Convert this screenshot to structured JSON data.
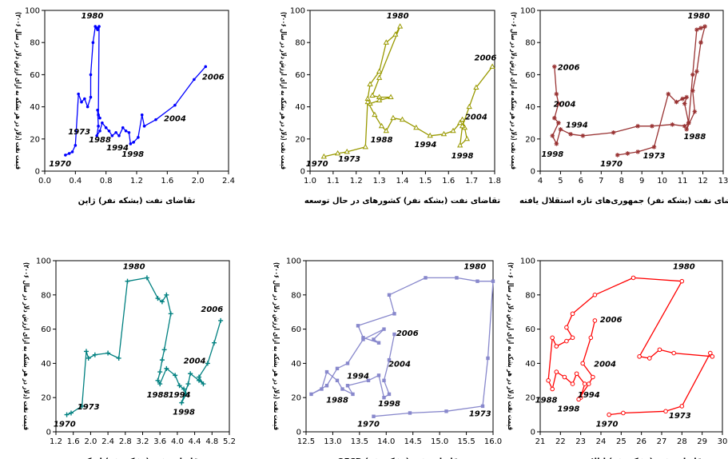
{
  "chart_data": [
    {
      "type": "line",
      "xlabel": "تقاضای نفت (بشکه نفر) ژاپن",
      "ylabel": "قیمت نفت (دلار در هر بشکه به ازای ارزش دلار در سال ۲۰۰۶)",
      "xlim": [
        0,
        2.4
      ],
      "ylim": [
        0,
        100
      ],
      "xticks": [
        "0.0",
        "0.4",
        "0.8",
        "1.2",
        "1.6",
        "2.0",
        "2.4"
      ],
      "yticks": [
        "0",
        "20",
        "40",
        "60",
        "80",
        "100"
      ],
      "color": "#0000ff",
      "marker": "dot",
      "x": [
        0.27,
        0.32,
        0.36,
        0.4,
        0.44,
        0.48,
        0.52,
        0.56,
        0.6,
        0.6,
        0.63,
        0.66,
        0.68,
        0.69,
        0.71,
        0.7,
        0.72,
        0.69,
        0.7,
        0.68,
        0.72,
        0.75,
        0.8,
        0.84,
        0.88,
        0.93,
        0.97,
        1.02,
        1.06,
        1.1,
        1.12,
        1.16,
        1.22,
        1.27,
        1.3,
        1.45,
        1.7,
        1.95,
        2.1
      ],
      "y": [
        10,
        11,
        12,
        16,
        48,
        43,
        45,
        40,
        46,
        60,
        80,
        90,
        89,
        88,
        90,
        35,
        33,
        38,
        28,
        22,
        25,
        30,
        27,
        25,
        22,
        24,
        22,
        27,
        25,
        24,
        17,
        18,
        21,
        35,
        28,
        32,
        41,
        57,
        65
      ],
      "annotations": [
        {
          "text": "1970",
          "x": 0.2,
          "y": 3
        },
        {
          "text": "1973",
          "x": 0.45,
          "y": 23
        },
        {
          "text": "1980",
          "x": 0.62,
          "y": 95
        },
        {
          "text": "1988",
          "x": 0.72,
          "y": 18
        },
        {
          "text": "1994",
          "x": 0.95,
          "y": 13
        },
        {
          "text": "1998",
          "x": 1.15,
          "y": 9
        },
        {
          "text": "2004",
          "x": 1.7,
          "y": 31
        },
        {
          "text": "2006",
          "x": 2.2,
          "y": 57
        }
      ]
    },
    {
      "type": "line",
      "xlabel": "تقاضای نفت (بشکه نفر) کشورهای در حال توسعه",
      "ylabel": "قیمت نفت (دلار در هر بشکه به ازای ارزش دلار در سال ۲۰۰۶)",
      "xlim": [
        1.0,
        1.8
      ],
      "ylim": [
        0,
        100
      ],
      "xticks": [
        "1.0",
        "1.1",
        "1.2",
        "1.3",
        "1.4",
        "1.5",
        "1.6",
        "1.7",
        "1.8"
      ],
      "yticks": [
        "0",
        "20",
        "40",
        "60",
        "80",
        "100"
      ],
      "color": "#999900",
      "marker": "triangle",
      "x": [
        1.06,
        1.12,
        1.16,
        1.24,
        1.25,
        1.26,
        1.3,
        1.33,
        1.37,
        1.39,
        1.3,
        1.27,
        1.3,
        1.35,
        1.3,
        1.26,
        1.25,
        1.28,
        1.31,
        1.33,
        1.36,
        1.4,
        1.46,
        1.52,
        1.58,
        1.62,
        1.65,
        1.66,
        1.67,
        1.68,
        1.65,
        1.66,
        1.69,
        1.72,
        1.79
      ],
      "y": [
        9,
        11,
        12,
        15,
        45,
        54,
        62,
        80,
        85,
        90,
        58,
        47,
        46,
        46,
        44,
        42,
        43,
        35,
        28,
        25,
        33,
        32,
        27,
        22,
        23,
        25,
        30,
        32,
        27,
        20,
        16,
        28,
        40,
        52,
        65
      ],
      "annotations": [
        {
          "text": "1970",
          "x": 1.03,
          "y": 3
        },
        {
          "text": "1973",
          "x": 1.17,
          "y": 6
        },
        {
          "text": "1980",
          "x": 1.38,
          "y": 95
        },
        {
          "text": "1988",
          "x": 1.31,
          "y": 18
        },
        {
          "text": "1994",
          "x": 1.5,
          "y": 15
        },
        {
          "text": "1998",
          "x": 1.66,
          "y": 8
        },
        {
          "text": "2004",
          "x": 1.72,
          "y": 32
        },
        {
          "text": "2006",
          "x": 1.76,
          "y": 69
        }
      ]
    },
    {
      "type": "line",
      "xlabel": "تقاضای نفت (بشکه نفر) جمهوری‌های تازه استقلال یافته",
      "ylabel": "قیمت نفت (دلار در هر بشکه به ازای ارزش دلار در سال ۲۰۰۶)",
      "xlim": [
        4,
        13
      ],
      "ylim": [
        0,
        100
      ],
      "xticks": [
        "4",
        "5",
        "6",
        "7",
        "8",
        "9",
        "10",
        "11",
        "12",
        "13"
      ],
      "yticks": [
        "0",
        "20",
        "40",
        "60",
        "80",
        "100"
      ],
      "color": "#993333",
      "marker": "star",
      "x": [
        7.8,
        8.3,
        8.8,
        9.6,
        10.3,
        10.7,
        11.0,
        11.2,
        11.1,
        11.3,
        11.2,
        11.6,
        11.5,
        11.7,
        11.9,
        12.1,
        11.9,
        11.7,
        11.5,
        11.3,
        11.1,
        10.5,
        9.5,
        8.8,
        7.6,
        6.1,
        5.5,
        5.0,
        4.8,
        4.6,
        4.9,
        4.7,
        4.9,
        4.8,
        4.7
      ],
      "y": [
        10,
        11,
        12,
        15,
        48,
        43,
        45,
        46,
        42,
        30,
        26,
        37,
        50,
        62,
        80,
        90,
        89,
        88,
        60,
        30,
        28,
        29,
        28,
        28,
        24,
        22,
        23,
        26,
        17,
        22,
        30,
        33,
        42,
        48,
        65
      ],
      "annotations": [
        {
          "text": "1970",
          "x": 7.5,
          "y": 3
        },
        {
          "text": "1973",
          "x": 9.6,
          "y": 8
        },
        {
          "text": "1980",
          "x": 11.8,
          "y": 95
        },
        {
          "text": "1988",
          "x": 11.6,
          "y": 20
        },
        {
          "text": "1994",
          "x": 5.8,
          "y": 27
        },
        {
          "text": "1998",
          "x": 4.6,
          "y": 9
        },
        {
          "text": "2004",
          "x": 5.2,
          "y": 40
        },
        {
          "text": "2006",
          "x": 5.4,
          "y": 63
        }
      ]
    },
    {
      "type": "line",
      "xlabel": "تقاضای نفت (بشکه نفر) اوپک",
      "ylabel": "قیمت نفت (دلار در هر بشکه به ازای ارزش دلار در سال ۲۰۰۶)",
      "xlim": [
        1.2,
        5.2
      ],
      "ylim": [
        0,
        100
      ],
      "xticks": [
        "1.2",
        "1.6",
        "2.0",
        "2.4",
        "2.8",
        "3.2",
        "3.6",
        "4.0",
        "4.4",
        "4.8",
        "5.2"
      ],
      "yticks": [
        "0",
        "20",
        "40",
        "60",
        "80",
        "100"
      ],
      "color": "#008080",
      "marker": "plus",
      "x": [
        1.45,
        1.55,
        1.8,
        1.9,
        1.95,
        2.1,
        2.4,
        2.65,
        2.85,
        3.3,
        3.55,
        3.65,
        3.75,
        3.85,
        3.7,
        3.65,
        3.6,
        3.55,
        3.6,
        3.75,
        3.95,
        4.05,
        4.15,
        4.2,
        4.1,
        4.25,
        4.3,
        4.5,
        4.6,
        4.5,
        4.7,
        4.85,
        5.0
      ],
      "y": [
        10,
        11,
        15,
        47,
        43,
        45,
        46,
        43,
        88,
        90,
        78,
        76,
        80,
        69,
        48,
        42,
        35,
        30,
        28,
        37,
        33,
        27,
        25,
        22,
        17,
        28,
        34,
        30,
        28,
        32,
        40,
        52,
        65
      ],
      "annotations": [
        {
          "text": "1970",
          "x": 1.4,
          "y": 3
        },
        {
          "text": "1973",
          "x": 1.95,
          "y": 13
        },
        {
          "text": "1980",
          "x": 3.0,
          "y": 95
        },
        {
          "text": "1988",
          "x": 3.55,
          "y": 20
        },
        {
          "text": "1994",
          "x": 4.05,
          "y": 20
        },
        {
          "text": "1998",
          "x": 4.15,
          "y": 10
        },
        {
          "text": "2004",
          "x": 4.4,
          "y": 40
        },
        {
          "text": "2006",
          "x": 4.8,
          "y": 70
        }
      ]
    },
    {
      "type": "line",
      "xlabel": "تقاضای نفت (بشکه نفر) OECD",
      "ylabel": "قیمت نفت (دلار در هر بشکه به ازای ارزش دلار در سال ۲۰۰۶)",
      "xlim": [
        12.5,
        16.1
      ],
      "ylim": [
        0,
        100
      ],
      "xticks": [
        "12.5",
        "13.0",
        "13.5",
        "14.0",
        "14.5",
        "15.0",
        "15.5",
        "16.0"
      ],
      "yticks": [
        "0",
        "20",
        "40",
        "60",
        "80",
        "100"
      ],
      "color": "#8888cc",
      "marker": "square",
      "x": [
        13.8,
        14.5,
        15.2,
        15.9,
        16.0,
        16.1,
        15.8,
        15.4,
        14.8,
        14.1,
        14.2,
        13.5,
        13.6,
        13.9,
        13.8,
        14.0,
        13.6,
        13.3,
        13.1,
        12.9,
        12.6,
        12.8,
        12.9,
        13.1,
        13.2,
        13.4,
        13.3,
        13.7,
        13.9,
        14.0,
        14.1,
        14.0,
        14.1,
        14.2
      ],
      "y": [
        9,
        11,
        12,
        15,
        43,
        88,
        88,
        90,
        90,
        80,
        69,
        62,
        55,
        52,
        54,
        60,
        54,
        40,
        37,
        27,
        22,
        25,
        35,
        30,
        25,
        22,
        27,
        30,
        33,
        20,
        22,
        30,
        42,
        57
      ],
      "annotations": [
        {
          "text": "1970",
          "x": 13.7,
          "y": 3
        },
        {
          "text": "1973",
          "x": 15.85,
          "y": 9
        },
        {
          "text": "1980",
          "x": 15.75,
          "y": 95
        },
        {
          "text": "1988",
          "x": 13.1,
          "y": 17
        },
        {
          "text": "1994",
          "x": 13.5,
          "y": 31
        },
        {
          "text": "1998",
          "x": 14.1,
          "y": 15
        },
        {
          "text": "2004",
          "x": 14.3,
          "y": 38
        },
        {
          "text": "2006",
          "x": 14.45,
          "y": 56
        }
      ]
    },
    {
      "type": "line",
      "xlabel": "تقاضای نفت (بشکه نفر) ایالات متحده",
      "ylabel": "قیمت نفت (دلار در هر بشکه به ازای ارزش دلار در سال ۲۰۰۶)",
      "xlim": [
        21,
        30
      ],
      "ylim": [
        0,
        100
      ],
      "xticks": [
        "21",
        "22",
        "23",
        "24",
        "25",
        "26",
        "27",
        "28",
        "29",
        "30"
      ],
      "yticks": [
        "0",
        "20",
        "40",
        "60",
        "80",
        "100"
      ],
      "color": "#ff0000",
      "marker": "circle",
      "x": [
        24.4,
        25.1,
        27.2,
        28.0,
        29.4,
        29.5,
        27.6,
        26.9,
        26.4,
        25.9,
        28.0,
        25.6,
        23.7,
        22.6,
        22.3,
        22.6,
        22.3,
        21.8,
        21.6,
        21.4,
        21.6,
        21.8,
        22.2,
        22.6,
        22.8,
        23.2,
        23.0,
        22.9,
        23.4,
        23.6,
        23.1,
        23.5,
        23.7
      ],
      "y": [
        10,
        11,
        12,
        15,
        46,
        44,
        46,
        48,
        43,
        44,
        88,
        90,
        80,
        69,
        61,
        55,
        53,
        50,
        55,
        30,
        25,
        35,
        32,
        28,
        34,
        28,
        20,
        19,
        28,
        32,
        40,
        55,
        65
      ],
      "annotations": [
        {
          "text": "1970",
          "x": 24.3,
          "y": 3
        },
        {
          "text": "1973",
          "x": 27.9,
          "y": 8
        },
        {
          "text": "1980",
          "x": 28.1,
          "y": 95
        },
        {
          "text": "1988",
          "x": 21.3,
          "y": 17
        },
        {
          "text": "1994",
          "x": 23.4,
          "y": 20
        },
        {
          "text": "1998",
          "x": 22.4,
          "y": 12
        },
        {
          "text": "2004",
          "x": 24.2,
          "y": 38
        },
        {
          "text": "2006",
          "x": 24.5,
          "y": 64
        }
      ]
    }
  ]
}
